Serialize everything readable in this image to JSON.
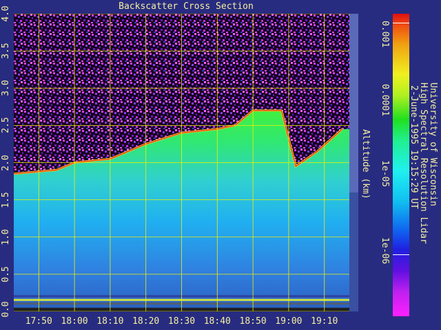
{
  "chart_data": {
    "type": "heatmap",
    "title": "Backscatter Cross Section",
    "ylabel": "Altitude (km)",
    "ylim": [
      0,
      4
    ],
    "y_ticks": [
      "0.0",
      "0.5",
      "1.0",
      "1.5",
      "2.0",
      "2.5",
      "3.0",
      "3.5",
      "4.0"
    ],
    "x_ticks": [
      "17:50",
      "18:00",
      "18:10",
      "18:20",
      "18:30",
      "18:40",
      "18:50",
      "19:00",
      "19:10"
    ],
    "x_range": [
      "17:43",
      "19:17"
    ],
    "grid": true,
    "grid_color": "#f0f000",
    "boundary_layer_top_km": [
      {
        "t": "17:43",
        "z": 1.85
      },
      {
        "t": "17:55",
        "z": 1.9
      },
      {
        "t": "18:00",
        "z": 2.0
      },
      {
        "t": "18:10",
        "z": 2.05
      },
      {
        "t": "18:20",
        "z": 2.25
      },
      {
        "t": "18:30",
        "z": 2.4
      },
      {
        "t": "18:40",
        "z": 2.45
      },
      {
        "t": "18:45",
        "z": 2.5
      },
      {
        "t": "18:50",
        "z": 2.7
      },
      {
        "t": "18:58",
        "z": 2.7
      },
      {
        "t": "19:02",
        "z": 1.95
      },
      {
        "t": "19:08",
        "z": 2.15
      },
      {
        "t": "19:15",
        "z": 2.45
      }
    ],
    "colorbar": {
      "scale": "log",
      "labels": [
        "0.001",
        "0.0001",
        "1e-05",
        "1e-06"
      ],
      "colors": [
        "#e01010",
        "#f0f020",
        "#20e020",
        "#20f0f0",
        "#1060f0",
        "#6010e0",
        "#ff20ff"
      ]
    }
  },
  "caption": {
    "line1": "University of Wisconsin",
    "line2": "High Spectral Resolution Lidar",
    "line3": "2-June-1995 19:15:29 UT"
  }
}
